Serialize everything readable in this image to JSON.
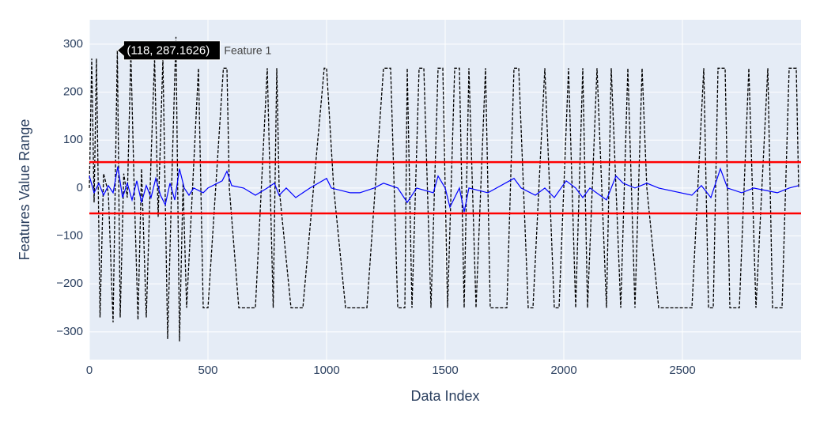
{
  "chart_data": {
    "type": "line",
    "xlabel": "Data Index",
    "ylabel": "Features Value Range",
    "xlim": [
      0,
      3000
    ],
    "ylim": [
      -358,
      351
    ],
    "xticks": [
      0,
      500,
      1000,
      1500,
      2000,
      2500
    ],
    "yticks": [
      {
        "value": -300,
        "label": "−300"
      },
      {
        "value": -200,
        "label": "−200"
      },
      {
        "value": -100,
        "label": "−100"
      },
      0,
      100,
      200,
      300
    ],
    "grid": true,
    "background": "#e5ecf6",
    "series": [
      {
        "name": "Feature 1",
        "color": "#000000",
        "dash": true,
        "x": [
          0,
          10,
          20,
          30,
          45,
          60,
          80,
          100,
          118,
          130,
          145,
          160,
          175,
          190,
          205,
          220,
          240,
          260,
          275,
          290,
          310,
          330,
          350,
          365,
          380,
          395,
          410,
          460,
          480,
          500,
          565,
          580,
          590,
          630,
          700,
          750,
          775,
          790,
          800,
          850,
          870,
          900,
          990,
          1000,
          1030,
          1080,
          1130,
          1170,
          1240,
          1270,
          1300,
          1330,
          1340,
          1360,
          1390,
          1410,
          1440,
          1470,
          1490,
          1510,
          1540,
          1560,
          1580,
          1600,
          1630,
          1670,
          1690,
          1760,
          1790,
          1810,
          1850,
          1870,
          1920,
          1960,
          1980,
          2020,
          2050,
          2080,
          2100,
          2140,
          2180,
          2200,
          2240,
          2270,
          2300,
          2330,
          2350,
          2400,
          2420,
          2540,
          2590,
          2610,
          2630,
          2650,
          2680,
          2700,
          2740,
          2780,
          2810,
          2860,
          2880,
          2920,
          2950,
          2980,
          2990
        ],
        "values": [
          0,
          270,
          -30,
          270,
          -270,
          30,
          -10,
          -280,
          287.1626,
          -270,
          30,
          -20,
          280,
          -20,
          -275,
          40,
          -270,
          60,
          270,
          -60,
          270,
          -315,
          60,
          315,
          -320,
          10,
          -250,
          250,
          -250,
          -250,
          250,
          250,
          0,
          -250,
          -250,
          250,
          -250,
          250,
          0,
          -250,
          -250,
          -250,
          250,
          250,
          0,
          -250,
          -250,
          -250,
          250,
          250,
          -250,
          -250,
          250,
          -250,
          250,
          250,
          -250,
          250,
          250,
          -250,
          250,
          250,
          -250,
          250,
          -250,
          250,
          -250,
          -250,
          250,
          250,
          -250,
          -250,
          250,
          -250,
          -250,
          250,
          -250,
          250,
          -250,
          250,
          -250,
          250,
          -250,
          250,
          -250,
          250,
          0,
          -250,
          -250,
          -250,
          250,
          -250,
          -250,
          250,
          250,
          -250,
          -250,
          250,
          -250,
          250,
          -250,
          -250,
          250,
          250,
          0
        ]
      },
      {
        "color": "#0000ff",
        "dash": false,
        "x": [
          0,
          20,
          40,
          60,
          80,
          100,
          120,
          140,
          160,
          180,
          200,
          220,
          240,
          260,
          280,
          300,
          320,
          340,
          360,
          380,
          400,
          420,
          440,
          480,
          500,
          560,
          580,
          600,
          650,
          700,
          750,
          780,
          800,
          830,
          870,
          900,
          930,
          1000,
          1020,
          1100,
          1140,
          1200,
          1240,
          1300,
          1340,
          1380,
          1450,
          1470,
          1500,
          1520,
          1560,
          1580,
          1600,
          1680,
          1790,
          1820,
          1880,
          1920,
          1960,
          2010,
          2050,
          2080,
          2110,
          2180,
          2220,
          2250,
          2300,
          2350,
          2400,
          2540,
          2580,
          2620,
          2660,
          2690,
          2750,
          2800,
          2900,
          2950,
          2990
        ],
        "values": [
          25,
          -10,
          10,
          -15,
          5,
          -10,
          45,
          -20,
          10,
          -25,
          15,
          -30,
          5,
          -20,
          20,
          -15,
          -35,
          10,
          -25,
          40,
          0,
          -15,
          0,
          -10,
          0,
          15,
          35,
          5,
          0,
          -15,
          0,
          10,
          -15,
          0,
          -20,
          -10,
          0,
          20,
          0,
          -10,
          -10,
          0,
          10,
          0,
          -30,
          0,
          -10,
          25,
          0,
          -40,
          0,
          -50,
          0,
          -10,
          20,
          0,
          -15,
          0,
          -20,
          15,
          0,
          -20,
          0,
          -25,
          25,
          10,
          0,
          10,
          0,
          -15,
          5,
          -20,
          40,
          0,
          -10,
          0,
          -10,
          0,
          5
        ]
      }
    ],
    "hlines": [
      {
        "value": 54,
        "color": "#ff0000"
      },
      {
        "value": -53,
        "color": "#ff0000"
      }
    ],
    "tooltip": {
      "x": 118,
      "y": 287.1626,
      "label": "(118, 287.1626)"
    }
  }
}
